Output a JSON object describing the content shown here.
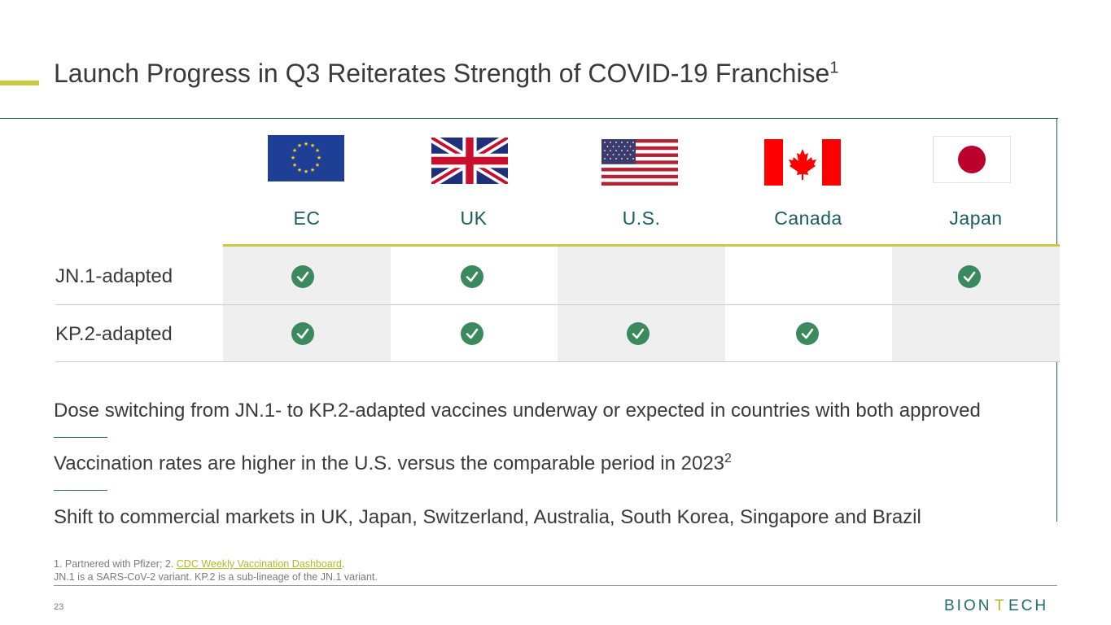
{
  "slide": {
    "title": "Launch Progress in Q3 Reiterates Strength of COVID-19 Franchise",
    "title_sup": "1"
  },
  "table": {
    "columns": [
      "EC",
      "UK",
      "U.S.",
      "Canada",
      "Japan"
    ],
    "rows": [
      {
        "label": "JN.1-adapted",
        "approved": [
          true,
          true,
          false,
          false,
          true
        ]
      },
      {
        "label": "KP.2-adapted",
        "approved": [
          true,
          true,
          true,
          true,
          false
        ]
      }
    ]
  },
  "bullets": [
    {
      "text": "Dose switching from JN.1- to KP.2-adapted vaccines underway or expected in countries with both approved",
      "sup": ""
    },
    {
      "text": "Vaccination rates are higher in the U.S. versus the comparable period in 2023",
      "sup": "2"
    },
    {
      "text": "Shift to commercial markets in UK, Japan, Switzerland, Australia, South Korea, Singapore and Brazil",
      "sup": ""
    }
  ],
  "footnotes": {
    "line1_prefix": "1. Partnered with Pfizer; 2. ",
    "line1_link": "CDC Weekly Vaccination Dashboard",
    "line1_suffix": ".",
    "line2": "JN.1 is a SARS-CoV-2 variant. KP.2 is a sub-lineage of the JN.1 variant."
  },
  "page_number": "23",
  "logo_text": "BIONTECH",
  "colors": {
    "accent": "#c8cc3c",
    "teal": "#1b5e5e",
    "check": "#3a8a5e",
    "cell_shade": "#efefef"
  },
  "icons": {
    "check": "check-circle-icon"
  }
}
